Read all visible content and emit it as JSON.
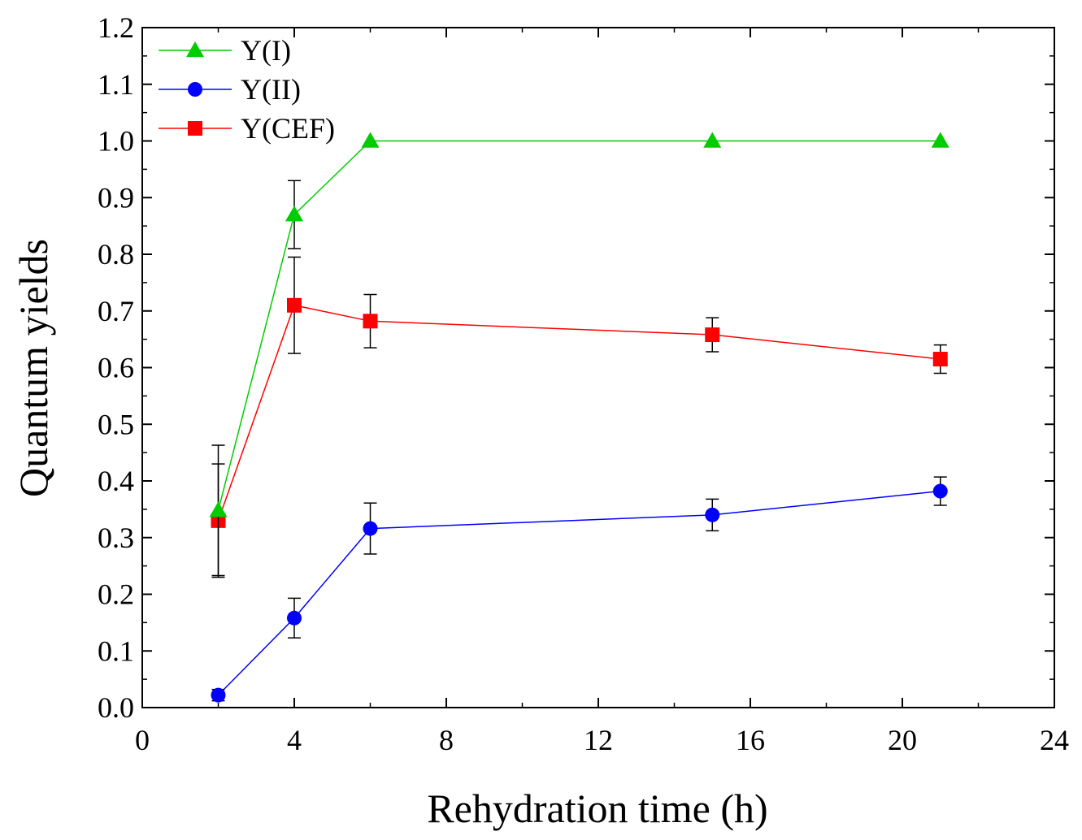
{
  "chart_data": {
    "type": "line",
    "title": "",
    "xlabel": "Rehydration time (h)",
    "ylabel": "Quantum yields",
    "xlim": [
      0,
      24
    ],
    "ylim": [
      0,
      1.2
    ],
    "xticks": [
      0,
      4,
      8,
      12,
      16,
      20,
      24
    ],
    "xtick_labels": [
      "0",
      "4",
      "8",
      "12",
      "16",
      "20",
      "24"
    ],
    "yticks": [
      0,
      0.1,
      0.2,
      0.3,
      0.4,
      0.5,
      0.6,
      0.7,
      0.8,
      0.9,
      1.0,
      1.1,
      1.2
    ],
    "ytick_labels": [
      "0.0",
      "0.1",
      "0.2",
      "0.3",
      "0.4",
      "0.5",
      "0.6",
      "0.7",
      "0.8",
      "0.9",
      "1.0",
      "1.1",
      "1.2"
    ],
    "legend_position": "top-left",
    "series": [
      {
        "name": "Y(I)",
        "color": "#00cc00",
        "marker": "triangle",
        "x": [
          2,
          4,
          6,
          15,
          21
        ],
        "values": [
          0.348,
          0.87,
          1.0,
          1.0,
          1.0
        ],
        "errors": [
          0.115,
          0.06,
          0,
          0,
          0
        ]
      },
      {
        "name": "Y(II)",
        "color": "#0000ff",
        "marker": "circle",
        "x": [
          2,
          4,
          6,
          15,
          21
        ],
        "values": [
          0.022,
          0.158,
          0.316,
          0.34,
          0.382
        ],
        "errors": [
          0.01,
          0.035,
          0.045,
          0.028,
          0.025
        ]
      },
      {
        "name": "Y(CEF)",
        "color": "#ff0000",
        "marker": "square",
        "x": [
          2,
          4,
          6,
          15,
          21
        ],
        "values": [
          0.33,
          0.71,
          0.682,
          0.658,
          0.615
        ],
        "errors": [
          0.1,
          0.085,
          0.047,
          0.03,
          0.025
        ]
      }
    ]
  }
}
